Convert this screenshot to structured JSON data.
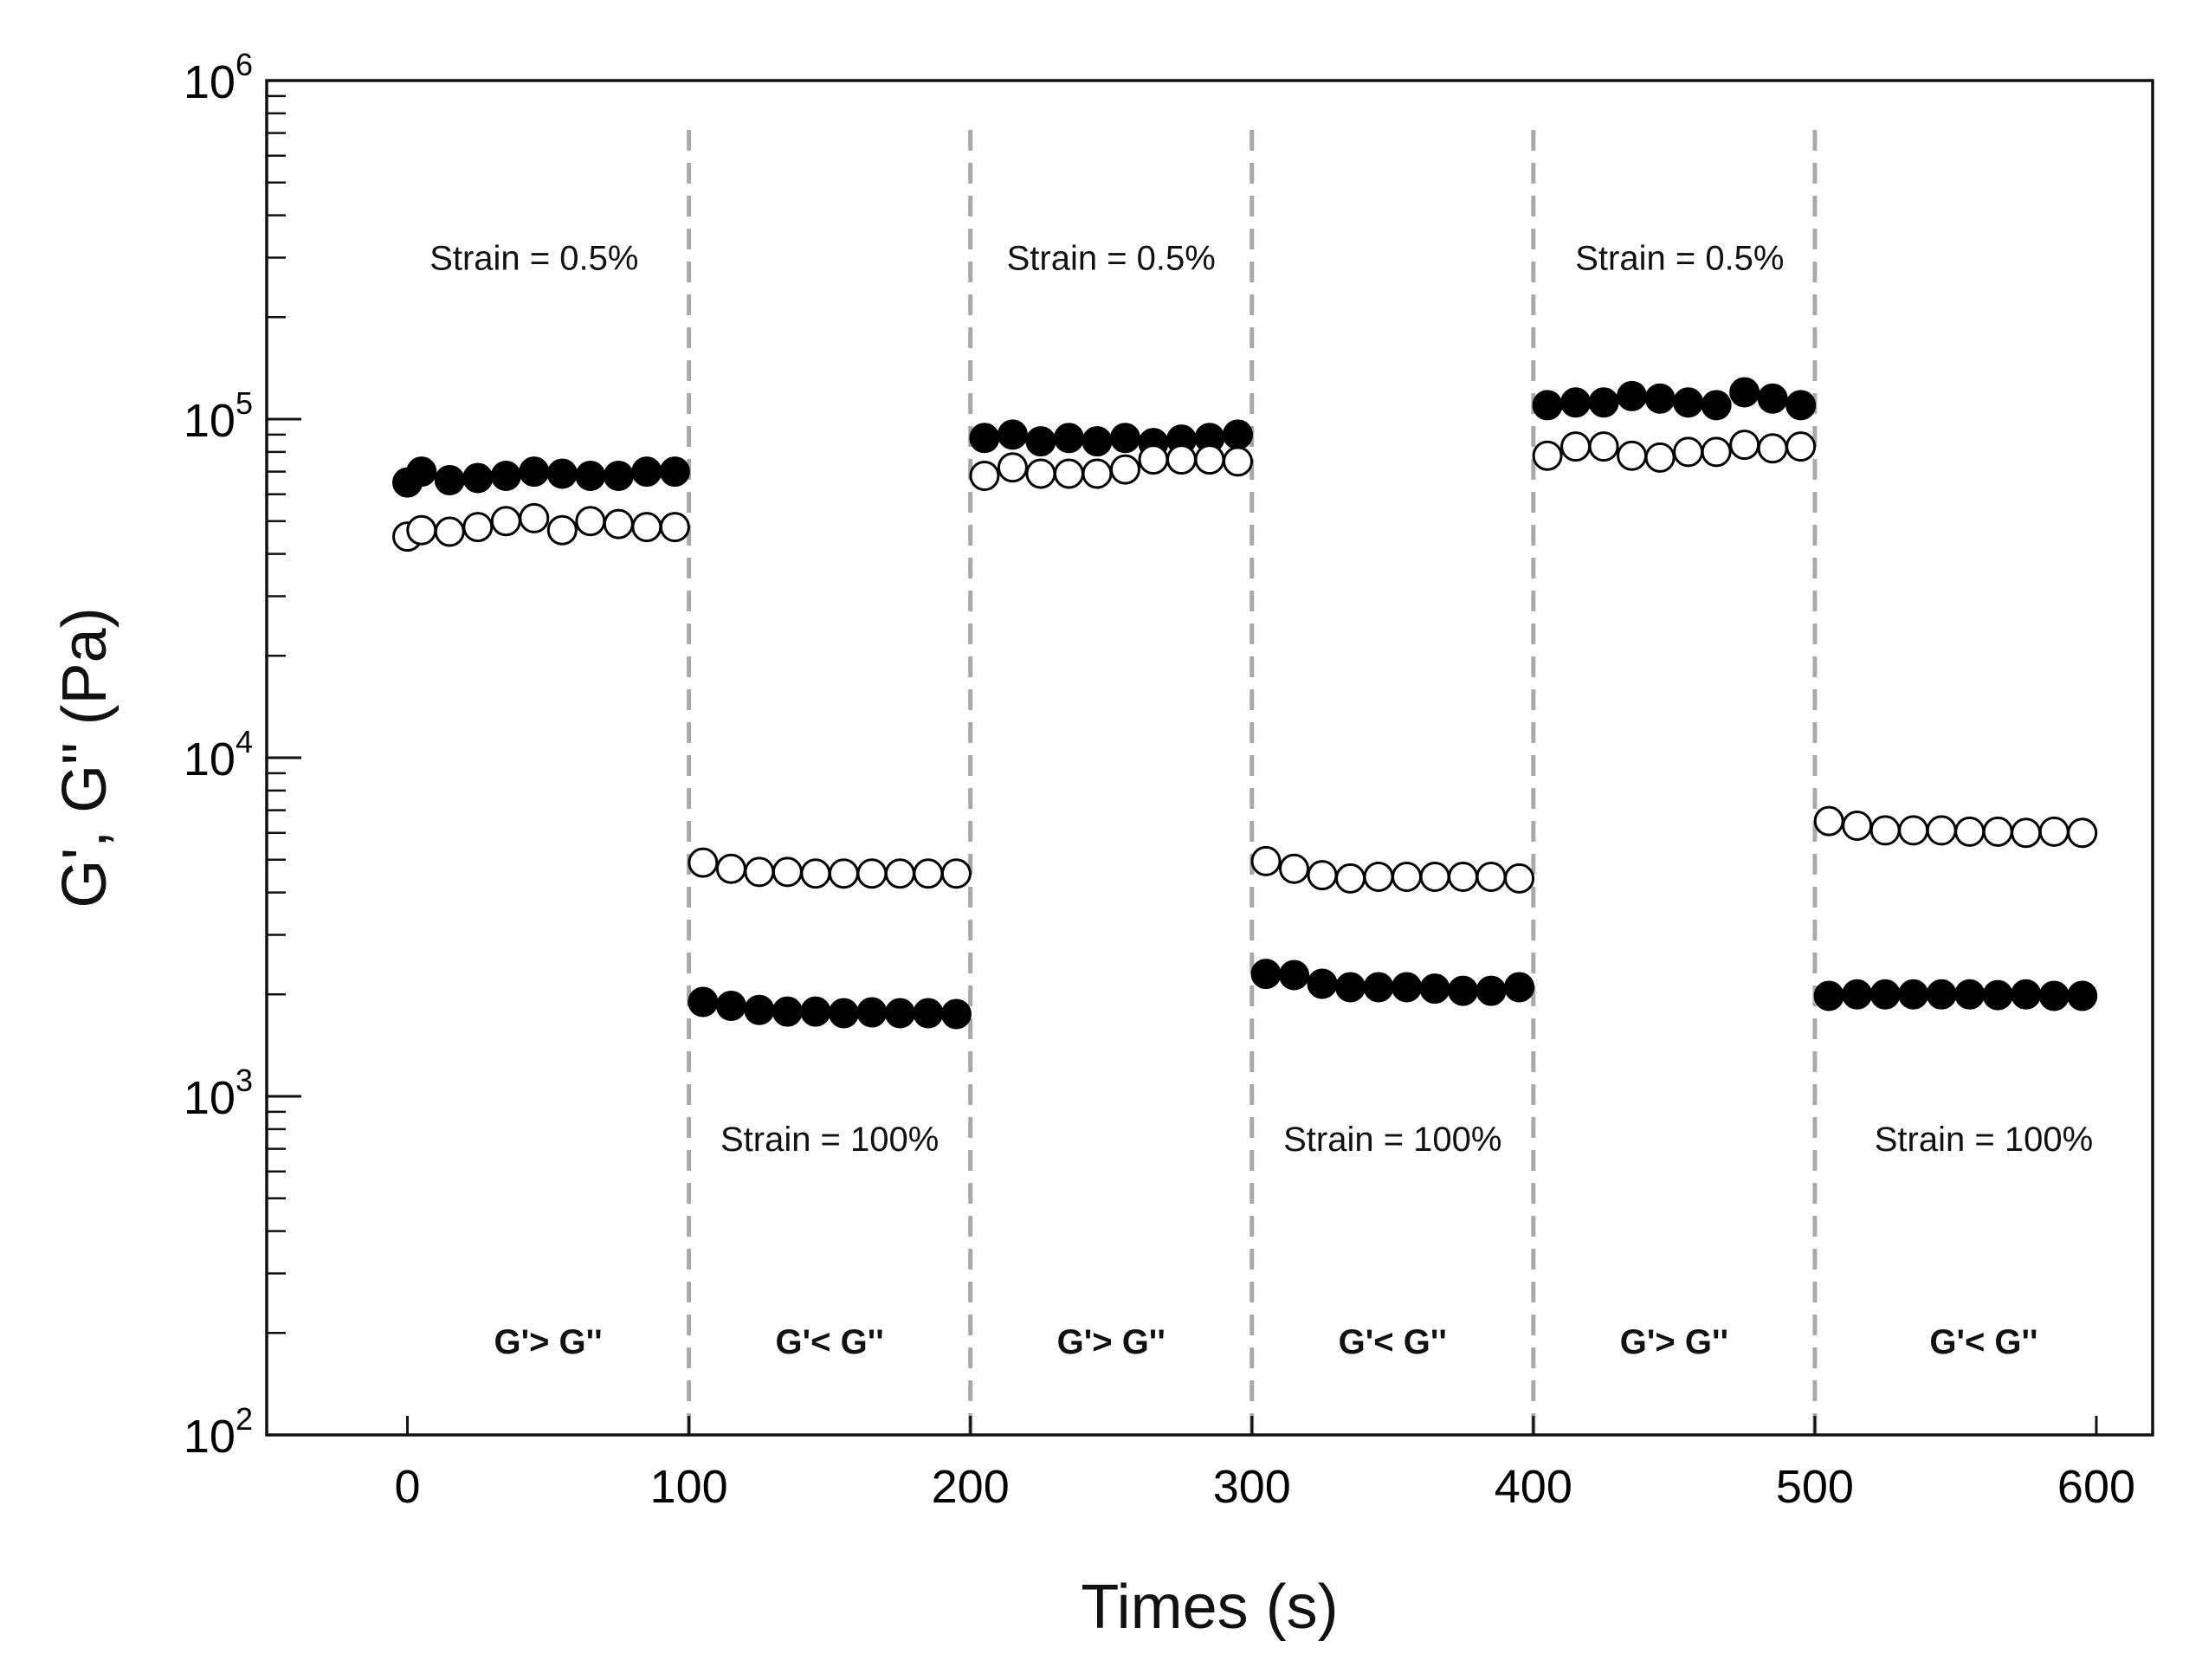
{
  "chart_data": {
    "type": "scatter",
    "title": "",
    "xlabel": "Times (s)",
    "ylabel": "G', G\" (Pa)",
    "xlim": [
      -50,
      620
    ],
    "ylim": [
      100,
      1000000
    ],
    "yscale": "log",
    "xticks": [
      0,
      100,
      200,
      300,
      400,
      500,
      600
    ],
    "xtick_labels": [
      "0",
      "100",
      "200",
      "300",
      "400",
      "500",
      "600"
    ],
    "yticks": [
      {
        "value": 100,
        "base": "10",
        "exp": "2"
      },
      {
        "value": 1000,
        "base": "10",
        "exp": "3"
      },
      {
        "value": 10000,
        "base": "10",
        "exp": "4"
      },
      {
        "value": 100000,
        "base": "10",
        "exp": "5"
      },
      {
        "value": 1000000,
        "base": "10",
        "exp": "6"
      }
    ],
    "grid": false,
    "phase_boundaries": [
      100,
      200,
      300,
      400,
      500
    ],
    "strain_labels": [
      {
        "x": 45,
        "value": 300000,
        "text": "Strain = 0.5%"
      },
      {
        "x": 250,
        "value": 300000,
        "text": "Strain = 0.5%"
      },
      {
        "x": 452,
        "value": 300000,
        "text": "Strain = 0.5%"
      },
      {
        "x": 150,
        "value": 750,
        "text": "Strain = 100%"
      },
      {
        "x": 350,
        "value": 750,
        "text": "Strain = 100%"
      },
      {
        "x": 560,
        "value": 750,
        "text": "Strain = 100%"
      }
    ],
    "relation_labels": [
      {
        "x": 50,
        "text": "G'> G''"
      },
      {
        "x": 150,
        "text": "G'< G''"
      },
      {
        "x": 250,
        "text": "G'> G''"
      },
      {
        "x": 350,
        "text": "G'< G''"
      },
      {
        "x": 450,
        "text": "G'> G''"
      },
      {
        "x": 560,
        "text": "G'< G''"
      }
    ],
    "series": [
      {
        "name": "G'",
        "marker": "filled-circle",
        "x": [
          0,
          5,
          15,
          25,
          35,
          45,
          55,
          65,
          75,
          85,
          95,
          105,
          115,
          125,
          135,
          145,
          155,
          165,
          175,
          185,
          195,
          205,
          215,
          225,
          235,
          245,
          255,
          265,
          275,
          285,
          295,
          305,
          315,
          325,
          335,
          345,
          355,
          365,
          375,
          385,
          395,
          405,
          415,
          425,
          435,
          445,
          455,
          465,
          475,
          485,
          495,
          505,
          515,
          525,
          535,
          545,
          555,
          565,
          575,
          585,
          595
        ],
        "values": [
          65000,
          70000,
          66000,
          67000,
          68000,
          70000,
          69000,
          68000,
          68000,
          70000,
          70000,
          1900,
          1850,
          1800,
          1780,
          1780,
          1760,
          1770,
          1760,
          1760,
          1750,
          88000,
          90000,
          86000,
          88000,
          86000,
          88000,
          85000,
          87000,
          88000,
          90000,
          2300,
          2280,
          2150,
          2100,
          2100,
          2100,
          2080,
          2050,
          2050,
          2100,
          110000,
          112000,
          112000,
          117000,
          115000,
          112000,
          110000,
          120000,
          115000,
          110000,
          1980,
          2000,
          2000,
          2000,
          2000,
          2000,
          1990,
          2000,
          1980,
          1980
        ]
      },
      {
        "name": "G\"",
        "marker": "open-circle",
        "x": [
          0,
          5,
          15,
          25,
          35,
          45,
          55,
          65,
          75,
          85,
          95,
          105,
          115,
          125,
          135,
          145,
          155,
          165,
          175,
          185,
          195,
          205,
          215,
          225,
          235,
          245,
          255,
          265,
          275,
          285,
          295,
          305,
          315,
          325,
          335,
          345,
          355,
          365,
          375,
          385,
          395,
          405,
          415,
          425,
          435,
          445,
          455,
          465,
          475,
          485,
          495,
          505,
          515,
          525,
          535,
          545,
          555,
          565,
          575,
          585,
          595
        ],
        "values": [
          45000,
          47000,
          46500,
          48000,
          50000,
          51000,
          47000,
          50000,
          49000,
          48000,
          48000,
          4900,
          4700,
          4600,
          4600,
          4550,
          4550,
          4550,
          4550,
          4550,
          4550,
          68000,
          72000,
          69000,
          69000,
          69000,
          71000,
          76000,
          76000,
          76000,
          75000,
          4950,
          4700,
          4500,
          4400,
          4450,
          4450,
          4450,
          4450,
          4450,
          4400,
          78000,
          83000,
          83000,
          78000,
          77000,
          80000,
          80000,
          84000,
          82000,
          83000,
          6500,
          6300,
          6100,
          6100,
          6100,
          6050,
          6050,
          6000,
          6050,
          6000
        ]
      }
    ]
  }
}
